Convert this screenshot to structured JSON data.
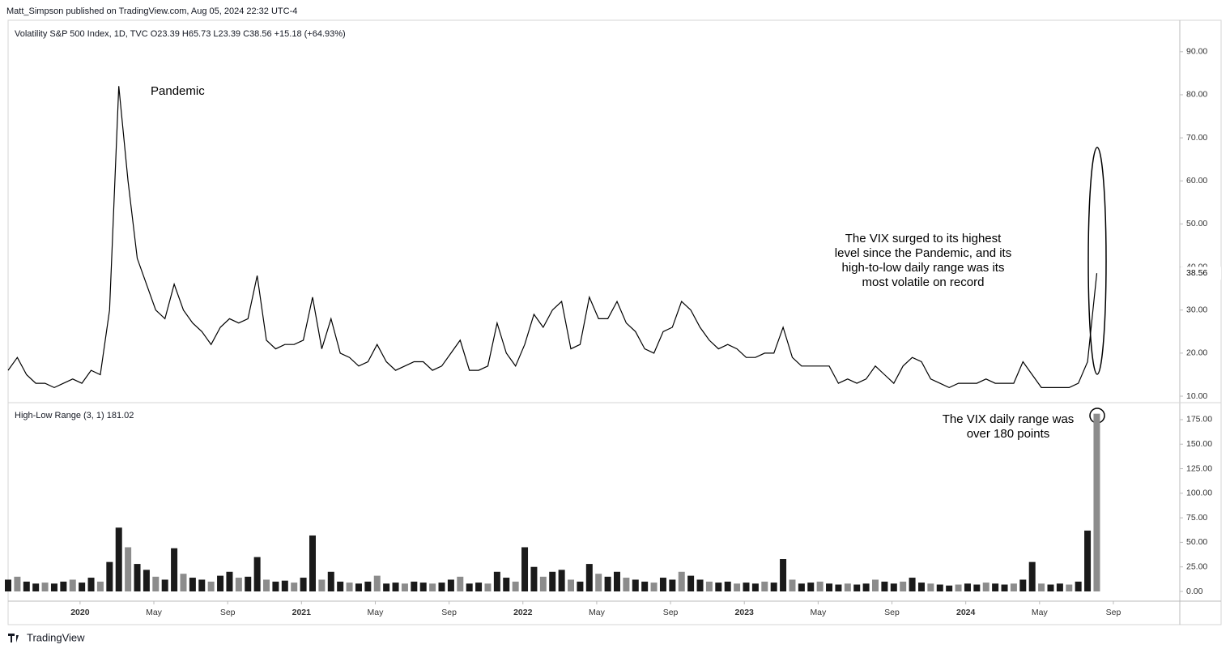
{
  "header": {
    "publisher": "Matt_Simpson published on TradingView.com, Aug 05, 2024 22:32 UTC-4",
    "footer": "TradingView"
  },
  "chart_data": [
    {
      "type": "line",
      "legend_text": "Volatility S&P 500 Index, 1D, TVC  O23.39  H65.73  L23.39  C38.56  +15.18 (+64.93%)",
      "color": "#000000",
      "values": [
        16,
        19,
        15,
        13,
        13,
        12,
        13,
        14,
        13,
        16,
        15,
        30,
        82,
        60,
        42,
        36,
        30,
        28,
        36,
        30,
        27,
        25,
        22,
        26,
        28,
        27,
        28,
        38,
        23,
        21,
        22,
        22,
        23,
        33,
        21,
        28,
        20,
        19,
        17,
        18,
        22,
        18,
        16,
        17,
        18,
        18,
        16,
        17,
        20,
        23,
        16,
        16,
        17,
        27,
        20,
        17,
        22,
        29,
        26,
        30,
        32,
        21,
        22,
        33,
        28,
        28,
        32,
        27,
        25,
        21,
        20,
        25,
        26,
        32,
        30,
        26,
        23,
        21,
        22,
        21,
        19,
        19,
        20,
        20,
        26,
        19,
        17,
        17,
        17,
        17,
        13,
        14,
        13,
        14,
        17,
        15,
        13,
        17,
        19,
        18,
        14,
        13,
        12,
        13,
        13,
        13,
        14,
        13,
        13,
        13,
        18,
        15,
        12,
        12,
        12,
        12,
        13,
        18,
        38.56
      ],
      "last_value": 38.56,
      "xlim": [
        0,
        127
      ],
      "ylim": [
        8.5,
        97.3
      ],
      "yticks": [
        {
          "value": 10,
          "label": "10.00"
        },
        {
          "value": 20,
          "label": "20.00"
        },
        {
          "value": 30,
          "label": "30.00"
        },
        {
          "value": 40,
          "label": "40.00"
        },
        {
          "value": 50,
          "label": "50.00"
        },
        {
          "value": 60,
          "label": "60.00"
        },
        {
          "value": 70,
          "label": "70.00"
        },
        {
          "value": 80,
          "label": "80.00"
        },
        {
          "value": 90,
          "label": "90.00"
        }
      ],
      "annotations": [
        "Pandemic",
        "The VIX surged to its highest",
        "level since the Pandemic, and its",
        "high-to-low daily range was its",
        "most volatile on record"
      ]
    },
    {
      "type": "bar",
      "legend_text": "High-Low Range (3, 1)  181.02",
      "color": "#1a1a1a",
      "values": [
        12,
        15,
        10,
        8,
        9,
        8,
        10,
        12,
        9,
        14,
        10,
        30,
        65,
        45,
        28,
        22,
        15,
        12,
        44,
        18,
        14,
        12,
        10,
        16,
        20,
        14,
        15,
        35,
        12,
        10,
        11,
        9,
        14,
        57,
        12,
        20,
        10,
        9,
        8,
        10,
        16,
        8,
        9,
        8,
        10,
        9,
        8,
        9,
        12,
        15,
        8,
        9,
        8,
        20,
        14,
        10,
        45,
        25,
        15,
        20,
        22,
        12,
        10,
        28,
        18,
        15,
        20,
        14,
        12,
        10,
        9,
        14,
        12,
        20,
        16,
        12,
        10,
        9,
        10,
        8,
        9,
        8,
        10,
        9,
        33,
        12,
        8,
        9,
        10,
        8,
        7,
        8,
        7,
        8,
        12,
        10,
        8,
        10,
        14,
        9,
        8,
        7,
        6,
        7,
        8,
        7,
        9,
        8,
        7,
        8,
        12,
        30,
        8,
        7,
        8,
        7,
        10,
        62,
        181.02
      ],
      "xlim": [
        0,
        127
      ],
      "ylim": [
        -9.9,
        192.3
      ],
      "yticks": [
        {
          "value": 0,
          "label": "0.00"
        },
        {
          "value": 25,
          "label": "25.00"
        },
        {
          "value": 50,
          "label": "50.00"
        },
        {
          "value": 75,
          "label": "75.00"
        },
        {
          "value": 100,
          "label": "100.00"
        },
        {
          "value": 125,
          "label": "125.00"
        },
        {
          "value": 150,
          "label": "150.00"
        },
        {
          "value": 175,
          "label": "175.00"
        }
      ],
      "xticks": [
        {
          "value": 7.8,
          "label": "2020"
        },
        {
          "value": 15.8,
          "label": "May"
        },
        {
          "value": 23.8,
          "label": "Sep"
        },
        {
          "value": 31.8,
          "label": "2021"
        },
        {
          "value": 39.8,
          "label": "May"
        },
        {
          "value": 47.8,
          "label": "Sep"
        },
        {
          "value": 55.8,
          "label": "2022"
        },
        {
          "value": 63.8,
          "label": "May"
        },
        {
          "value": 71.8,
          "label": "Sep"
        },
        {
          "value": 79.8,
          "label": "2023"
        },
        {
          "value": 87.8,
          "label": "May"
        },
        {
          "value": 95.8,
          "label": "Sep"
        },
        {
          "value": 103.8,
          "label": "2024"
        },
        {
          "value": 111.8,
          "label": "May"
        },
        {
          "value": 119.8,
          "label": "Sep"
        }
      ],
      "annotations": [
        "The VIX daily range was",
        "over 180 points"
      ]
    }
  ]
}
